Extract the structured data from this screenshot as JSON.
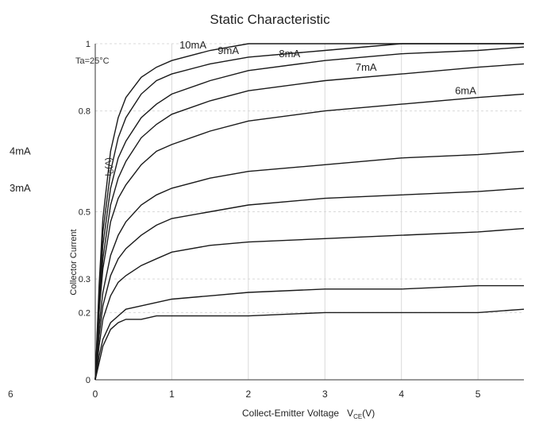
{
  "chart_data": {
    "type": "line",
    "title": "Static Characteristic",
    "xlabel": "Collect-Emitter Voltage",
    "xlabel_symbol": "V",
    "xlabel_subscript": "CE",
    "xlabel_unit": "(V)",
    "ylabel": "Collector Current",
    "ylabel_unit": "I",
    "ylabel_subscript": "C",
    "ylabel_unit_suffix": "(A)",
    "xlim": [
      0,
      5.6
    ],
    "ylim": [
      0,
      1.0
    ],
    "xticks": [
      0,
      1,
      2,
      3,
      4,
      5
    ],
    "xtick_labels": [
      "0",
      "1",
      "2",
      "3",
      "4",
      "5"
    ],
    "yticks": [
      0,
      0.2,
      0.3,
      0.5,
      0.8,
      1
    ],
    "ytick_labels": [
      "0",
      "0.2",
      "0.3",
      "0.5",
      "0.8",
      "1"
    ],
    "left_axis_fragment": "6",
    "condition_label": "Ta=25°C",
    "grid": true,
    "legend": "none",
    "x": [
      0,
      0.05,
      0.1,
      0.2,
      0.3,
      0.4,
      0.6,
      0.8,
      1.0,
      1.5,
      2.0,
      3.0,
      4.0,
      5.0,
      5.6
    ],
    "series": [
      {
        "name": "10mA",
        "values": [
          0,
          0.28,
          0.48,
          0.68,
          0.78,
          0.84,
          0.9,
          0.93,
          0.95,
          0.98,
          1.0,
          1.02,
          1.04,
          1.05,
          1.06
        ]
      },
      {
        "name": "9mA",
        "values": [
          0,
          0.26,
          0.44,
          0.62,
          0.72,
          0.78,
          0.85,
          0.89,
          0.91,
          0.94,
          0.96,
          0.98,
          1.0,
          1.01,
          1.02
        ]
      },
      {
        "name": "8mA",
        "values": [
          0,
          0.24,
          0.4,
          0.57,
          0.66,
          0.71,
          0.78,
          0.82,
          0.85,
          0.89,
          0.92,
          0.95,
          0.97,
          0.98,
          0.99
        ]
      },
      {
        "name": "7mA",
        "values": [
          0,
          0.22,
          0.36,
          0.52,
          0.6,
          0.65,
          0.72,
          0.76,
          0.79,
          0.83,
          0.86,
          0.89,
          0.91,
          0.93,
          0.94
        ]
      },
      {
        "name": "6mA",
        "values": [
          0,
          0.2,
          0.33,
          0.47,
          0.54,
          0.58,
          0.64,
          0.68,
          0.7,
          0.74,
          0.77,
          0.8,
          0.82,
          0.84,
          0.85
        ]
      },
      {
        "name": "4mA",
        "values": [
          0,
          0.16,
          0.26,
          0.37,
          0.43,
          0.47,
          0.52,
          0.55,
          0.57,
          0.6,
          0.62,
          0.64,
          0.66,
          0.67,
          0.68
        ]
      },
      {
        "name": "3mA",
        "values": [
          0,
          0.13,
          0.22,
          0.31,
          0.36,
          0.39,
          0.43,
          0.46,
          0.48,
          0.5,
          0.52,
          0.54,
          0.55,
          0.56,
          0.57
        ]
      },
      {
        "name": "",
        "values": [
          0,
          0.1,
          0.18,
          0.25,
          0.29,
          0.31,
          0.34,
          0.36,
          0.38,
          0.4,
          0.41,
          0.42,
          0.43,
          0.44,
          0.45
        ]
      },
      {
        "name": "",
        "values": [
          0,
          0.07,
          0.12,
          0.17,
          0.19,
          0.21,
          0.22,
          0.23,
          0.24,
          0.25,
          0.26,
          0.27,
          0.27,
          0.28,
          0.28
        ]
      },
      {
        "name": "",
        "values": [
          0,
          0.05,
          0.1,
          0.15,
          0.17,
          0.18,
          0.18,
          0.19,
          0.19,
          0.19,
          0.19,
          0.2,
          0.2,
          0.2,
          0.21
        ]
      }
    ],
    "colors": {
      "curve": "#1a1a1a",
      "grid": "#d9d9d9",
      "axis": "#333333",
      "text": "#222222",
      "background": "#ffffff"
    }
  }
}
